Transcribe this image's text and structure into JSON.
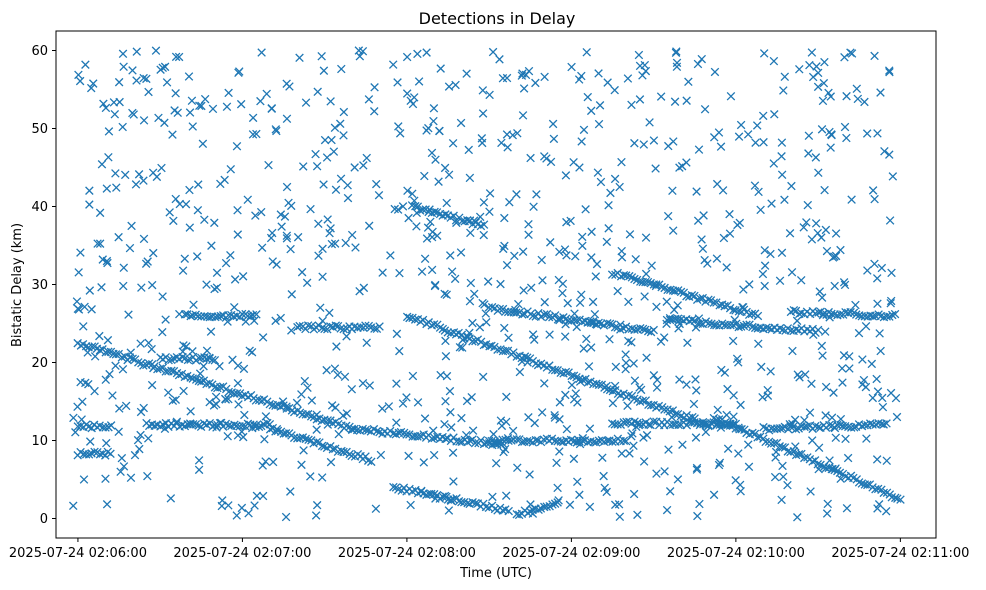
{
  "chart_data": {
    "type": "scatter",
    "title": "Detections in Delay",
    "xlabel": "Time (UTC)",
    "ylabel": "Bistatic Delay (km)",
    "marker": "x",
    "color": "#1f77b4",
    "grid": false,
    "legend": "none",
    "xlim": [
      "2025-07-24 02:05:52",
      "2025-07-24 02:11:13"
    ],
    "ylim": [
      -2.5,
      62.5
    ],
    "x_ticks": [
      "2025-07-24 02:06:00",
      "2025-07-24 02:07:00",
      "2025-07-24 02:08:00",
      "2025-07-24 02:09:00",
      "2025-07-24 02:10:00",
      "2025-07-24 02:11:00"
    ],
    "y_ticks": [
      "0",
      "10",
      "20",
      "30",
      "40",
      "50",
      "60"
    ],
    "x_time_range": [
      "2025-07-24 02:05:58",
      "2025-07-24 02:10:59"
    ],
    "tracks": [
      {
        "x_start": "2025-07-24 02:06:00",
        "x_end": "2025-07-24 02:07:40",
        "y_start": 22.5,
        "y_end": 11.5
      },
      {
        "x_start": "2025-07-24 02:07:40",
        "x_end": "2025-07-24 02:08:35",
        "y_start": 11.5,
        "y_end": 9.5
      },
      {
        "x_start": "2025-07-24 02:07:10",
        "x_end": "2025-07-24 02:07:47",
        "y_start": 11.5,
        "y_end": 7.5
      },
      {
        "x_start": "2025-07-24 02:07:55",
        "x_end": "2025-07-24 02:08:37",
        "y_start": 4.0,
        "y_end": 1.0
      },
      {
        "x_start": "2025-07-24 02:08:40",
        "x_end": "2025-07-24 02:08:55",
        "y_start": 0.5,
        "y_end": 2.0
      },
      {
        "x_start": "2025-07-24 02:08:02",
        "x_end": "2025-07-24 02:08:28",
        "y_start": 40.0,
        "y_end": 37.5
      },
      {
        "x_start": "2025-07-24 02:08:00",
        "x_end": "2025-07-24 02:09:50",
        "y_start": 26.0,
        "y_end": 12.0
      },
      {
        "x_start": "2025-07-24 02:09:15",
        "x_end": "2025-07-24 02:10:08",
        "y_start": 31.5,
        "y_end": 26.0
      },
      {
        "x_start": "2025-07-24 02:09:52",
        "x_end": "2025-07-24 02:11:00",
        "y_start": 13.0,
        "y_end": 2.5
      },
      {
        "x_start": "2025-07-24 02:06:40",
        "x_end": "2025-07-24 02:07:05",
        "y_start": 26.0,
        "y_end": 26.0
      },
      {
        "x_start": "2025-07-24 02:07:20",
        "x_end": "2025-07-24 02:07:50",
        "y_start": 24.5,
        "y_end": 24.5
      },
      {
        "x_start": "2025-07-24 02:08:30",
        "x_end": "2025-07-24 02:09:30",
        "y_start": 27.0,
        "y_end": 24.0
      },
      {
        "x_start": "2025-07-24 02:09:35",
        "x_end": "2025-07-24 02:10:30",
        "y_start": 25.5,
        "y_end": 24.0
      },
      {
        "x_start": "2025-07-24 02:10:20",
        "x_end": "2025-07-24 02:10:58",
        "y_start": 26.5,
        "y_end": 26.0
      },
      {
        "x_start": "2025-07-24 02:06:30",
        "x_end": "2025-07-24 02:06:50",
        "y_start": 20.5,
        "y_end": 20.5
      },
      {
        "x_start": "2025-07-24 02:06:00",
        "x_end": "2025-07-24 02:06:12",
        "y_start": 8.3,
        "y_end": 8.3
      },
      {
        "x_start": "2025-07-24 02:06:00",
        "x_end": "2025-07-24 02:06:12",
        "y_start": 11.8,
        "y_end": 11.8
      },
      {
        "x_start": "2025-07-24 02:06:25",
        "x_end": "2025-07-24 02:07:10",
        "y_start": 12.0,
        "y_end": 12.0
      },
      {
        "x_start": "2025-07-24 02:08:30",
        "x_end": "2025-07-24 02:09:20",
        "y_start": 10.0,
        "y_end": 10.0
      },
      {
        "x_start": "2025-07-24 02:09:15",
        "x_end": "2025-07-24 02:10:00",
        "y_start": 12.2,
        "y_end": 12.2
      },
      {
        "x_start": "2025-07-24 02:10:10",
        "x_end": "2025-07-24 02:10:55",
        "y_start": 11.5,
        "y_end": 12.0
      }
    ],
    "scattered_points": {
      "count": 1000,
      "x_range": [
        "2025-07-24 02:05:58",
        "2025-07-24 02:10:59"
      ],
      "y_range": [
        0,
        60
      ]
    }
  }
}
